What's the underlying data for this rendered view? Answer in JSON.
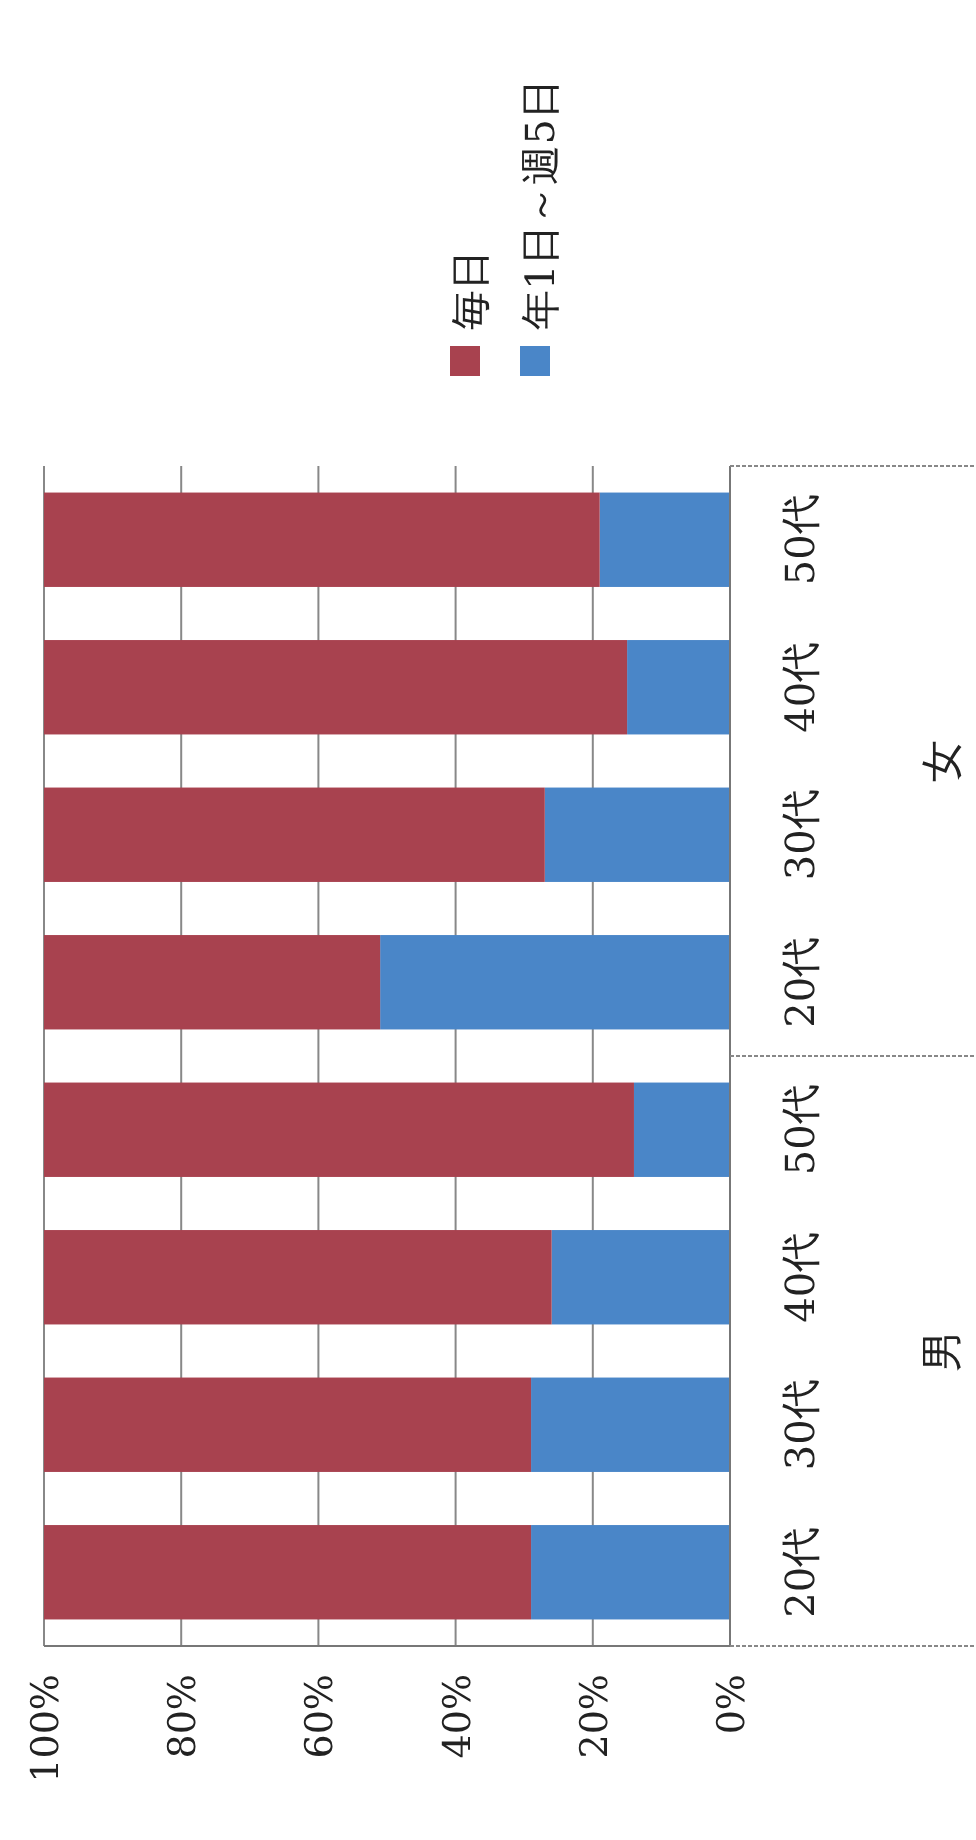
{
  "chart_data": {
    "type": "bar",
    "stacked": true,
    "orientation": "horizontal",
    "categories": [
      "50代",
      "40代",
      "30代",
      "20代",
      "50代",
      "40代",
      "30代",
      "20代"
    ],
    "series": [
      {
        "name": "年1日～週5日",
        "color": "#4a86c8",
        "values": [
          19,
          15,
          27,
          51,
          14,
          26,
          29,
          29
        ]
      },
      {
        "name": "毎日",
        "color": "#a8424f",
        "values": [
          81,
          85,
          73,
          49,
          86,
          74,
          71,
          71
        ]
      }
    ],
    "annotations": [
      "女",
      "男"
    ],
    "xlim": [
      100,
      0
    ],
    "xticks": [
      {
        "value": 0,
        "label": "0%"
      },
      {
        "value": 20,
        "label": "20%"
      },
      {
        "value": 40,
        "label": "40%"
      },
      {
        "value": 60,
        "label": "60%"
      },
      {
        "value": 80,
        "label": "80%"
      },
      {
        "value": 100,
        "label": "100%"
      }
    ],
    "grid": "x",
    "legend": "right"
  }
}
